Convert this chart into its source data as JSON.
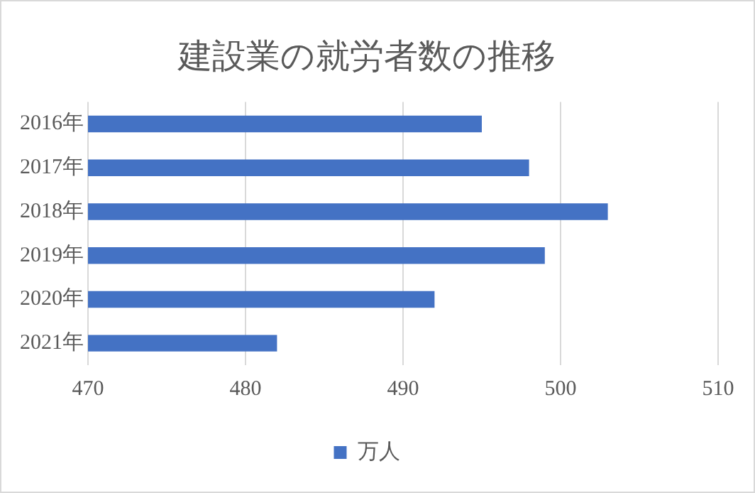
{
  "chart_data": {
    "type": "bar",
    "orientation": "horizontal",
    "title": "建設業の就労者数の推移",
    "categories": [
      "2016年",
      "2017年",
      "2018年",
      "2019年",
      "2020年",
      "2021年"
    ],
    "series": [
      {
        "name": "万人",
        "color": "#4472c4",
        "values": [
          495,
          498,
          503,
          499,
          492,
          482
        ]
      }
    ],
    "xlim": [
      470,
      510
    ],
    "xticks": [
      470,
      480,
      490,
      500,
      510
    ],
    "grid": "x",
    "legend": "bottom"
  }
}
